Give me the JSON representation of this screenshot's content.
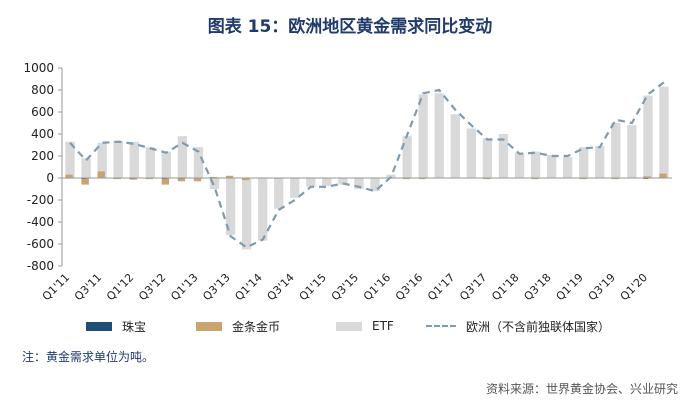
{
  "title": "图表 15：欧洲地区黄金需求同比变动",
  "note": "注：黄金需求单位为吨。",
  "source": "资料来源：世界黄金协会、兴业研究",
  "legend": {
    "jewelry": "珠宝",
    "bars_coins": "金条金币",
    "etf": "ETF",
    "europe": "欧洲（不含前独联体国家）"
  },
  "colors": {
    "jewelry": "#1f4e79",
    "bars_coins": "#c9a46f",
    "etf": "#d9d9d9",
    "europe": "#7f9bb2",
    "axis": "#999999"
  },
  "chart_data": {
    "type": "bar",
    "categories": [
      "Q1'11",
      "Q2'11",
      "Q3'11",
      "Q4'11",
      "Q1'12",
      "Q2'12",
      "Q3'12",
      "Q4'12",
      "Q1'13",
      "Q2'13",
      "Q3'13",
      "Q4'13",
      "Q1'14",
      "Q2'14",
      "Q3'14",
      "Q4'14",
      "Q1'15",
      "Q2'15",
      "Q3'15",
      "Q4'15",
      "Q1'16",
      "Q2'16",
      "Q3'16",
      "Q4'16",
      "Q1'17",
      "Q2'17",
      "Q3'17",
      "Q4'17",
      "Q1'18",
      "Q2'18",
      "Q3'18",
      "Q4'18",
      "Q1'19",
      "Q2'19",
      "Q3'19",
      "Q4'19",
      "Q1'20",
      "Q2'20"
    ],
    "tick_labels": [
      "Q1'11",
      "Q3'11",
      "Q1'12",
      "Q3'12",
      "Q1'13",
      "Q3'13",
      "Q1'14",
      "Q3'14",
      "Q1'15",
      "Q3'15",
      "Q1'16",
      "Q3'16",
      "Q1'17",
      "Q3'17",
      "Q1'18",
      "Q3'18",
      "Q1'19",
      "Q3'19",
      "Q1'20"
    ],
    "series": [
      {
        "name": "珠宝",
        "kind": "bar",
        "values": [
          -5,
          -8,
          -3,
          -5,
          -6,
          -5,
          -7,
          -6,
          -4,
          5,
          0,
          -2,
          -3,
          -5,
          -3,
          -2,
          -3,
          -2,
          -2,
          -2,
          -3,
          -2,
          -2,
          -2,
          -3,
          -2,
          -2,
          -2,
          -3,
          -2,
          -2,
          -3,
          -2,
          -2,
          -3,
          -2,
          -8,
          5
        ]
      },
      {
        "name": "金条金币",
        "kind": "bar",
        "values": [
          30,
          -60,
          60,
          -10,
          -15,
          -10,
          -60,
          -30,
          -30,
          10,
          20,
          -20,
          5,
          -5,
          -5,
          5,
          -5,
          -5,
          -5,
          5,
          -5,
          -10,
          -10,
          -5,
          -5,
          -5,
          -10,
          -5,
          -5,
          -10,
          -5,
          -5,
          -10,
          -5,
          -10,
          -5,
          15,
          40
        ]
      },
      {
        "name": "ETF",
        "kind": "bar",
        "values": [
          330,
          180,
          320,
          340,
          330,
          280,
          240,
          380,
          280,
          -100,
          -520,
          -650,
          -570,
          -280,
          -180,
          -80,
          -70,
          -60,
          -100,
          -120,
          30,
          380,
          760,
          770,
          580,
          450,
          360,
          400,
          230,
          240,
          210,
          190,
          280,
          290,
          500,
          480,
          750,
          830
        ]
      },
      {
        "name": "欧洲（不含前独联体国家）",
        "kind": "line",
        "values": [
          320,
          160,
          320,
          330,
          310,
          270,
          230,
          320,
          240,
          -80,
          -530,
          -630,
          -560,
          -290,
          -200,
          -80,
          -80,
          -50,
          -80,
          -120,
          10,
          390,
          770,
          800,
          620,
          480,
          350,
          350,
          220,
          230,
          200,
          200,
          270,
          280,
          530,
          500,
          760,
          870
        ]
      }
    ],
    "ylim": [
      -800,
      1000
    ],
    "yticks": [
      -800,
      -600,
      -400,
      -200,
      0,
      200,
      400,
      600,
      800,
      1000
    ],
    "grid": false,
    "legend_position": "bottom"
  }
}
